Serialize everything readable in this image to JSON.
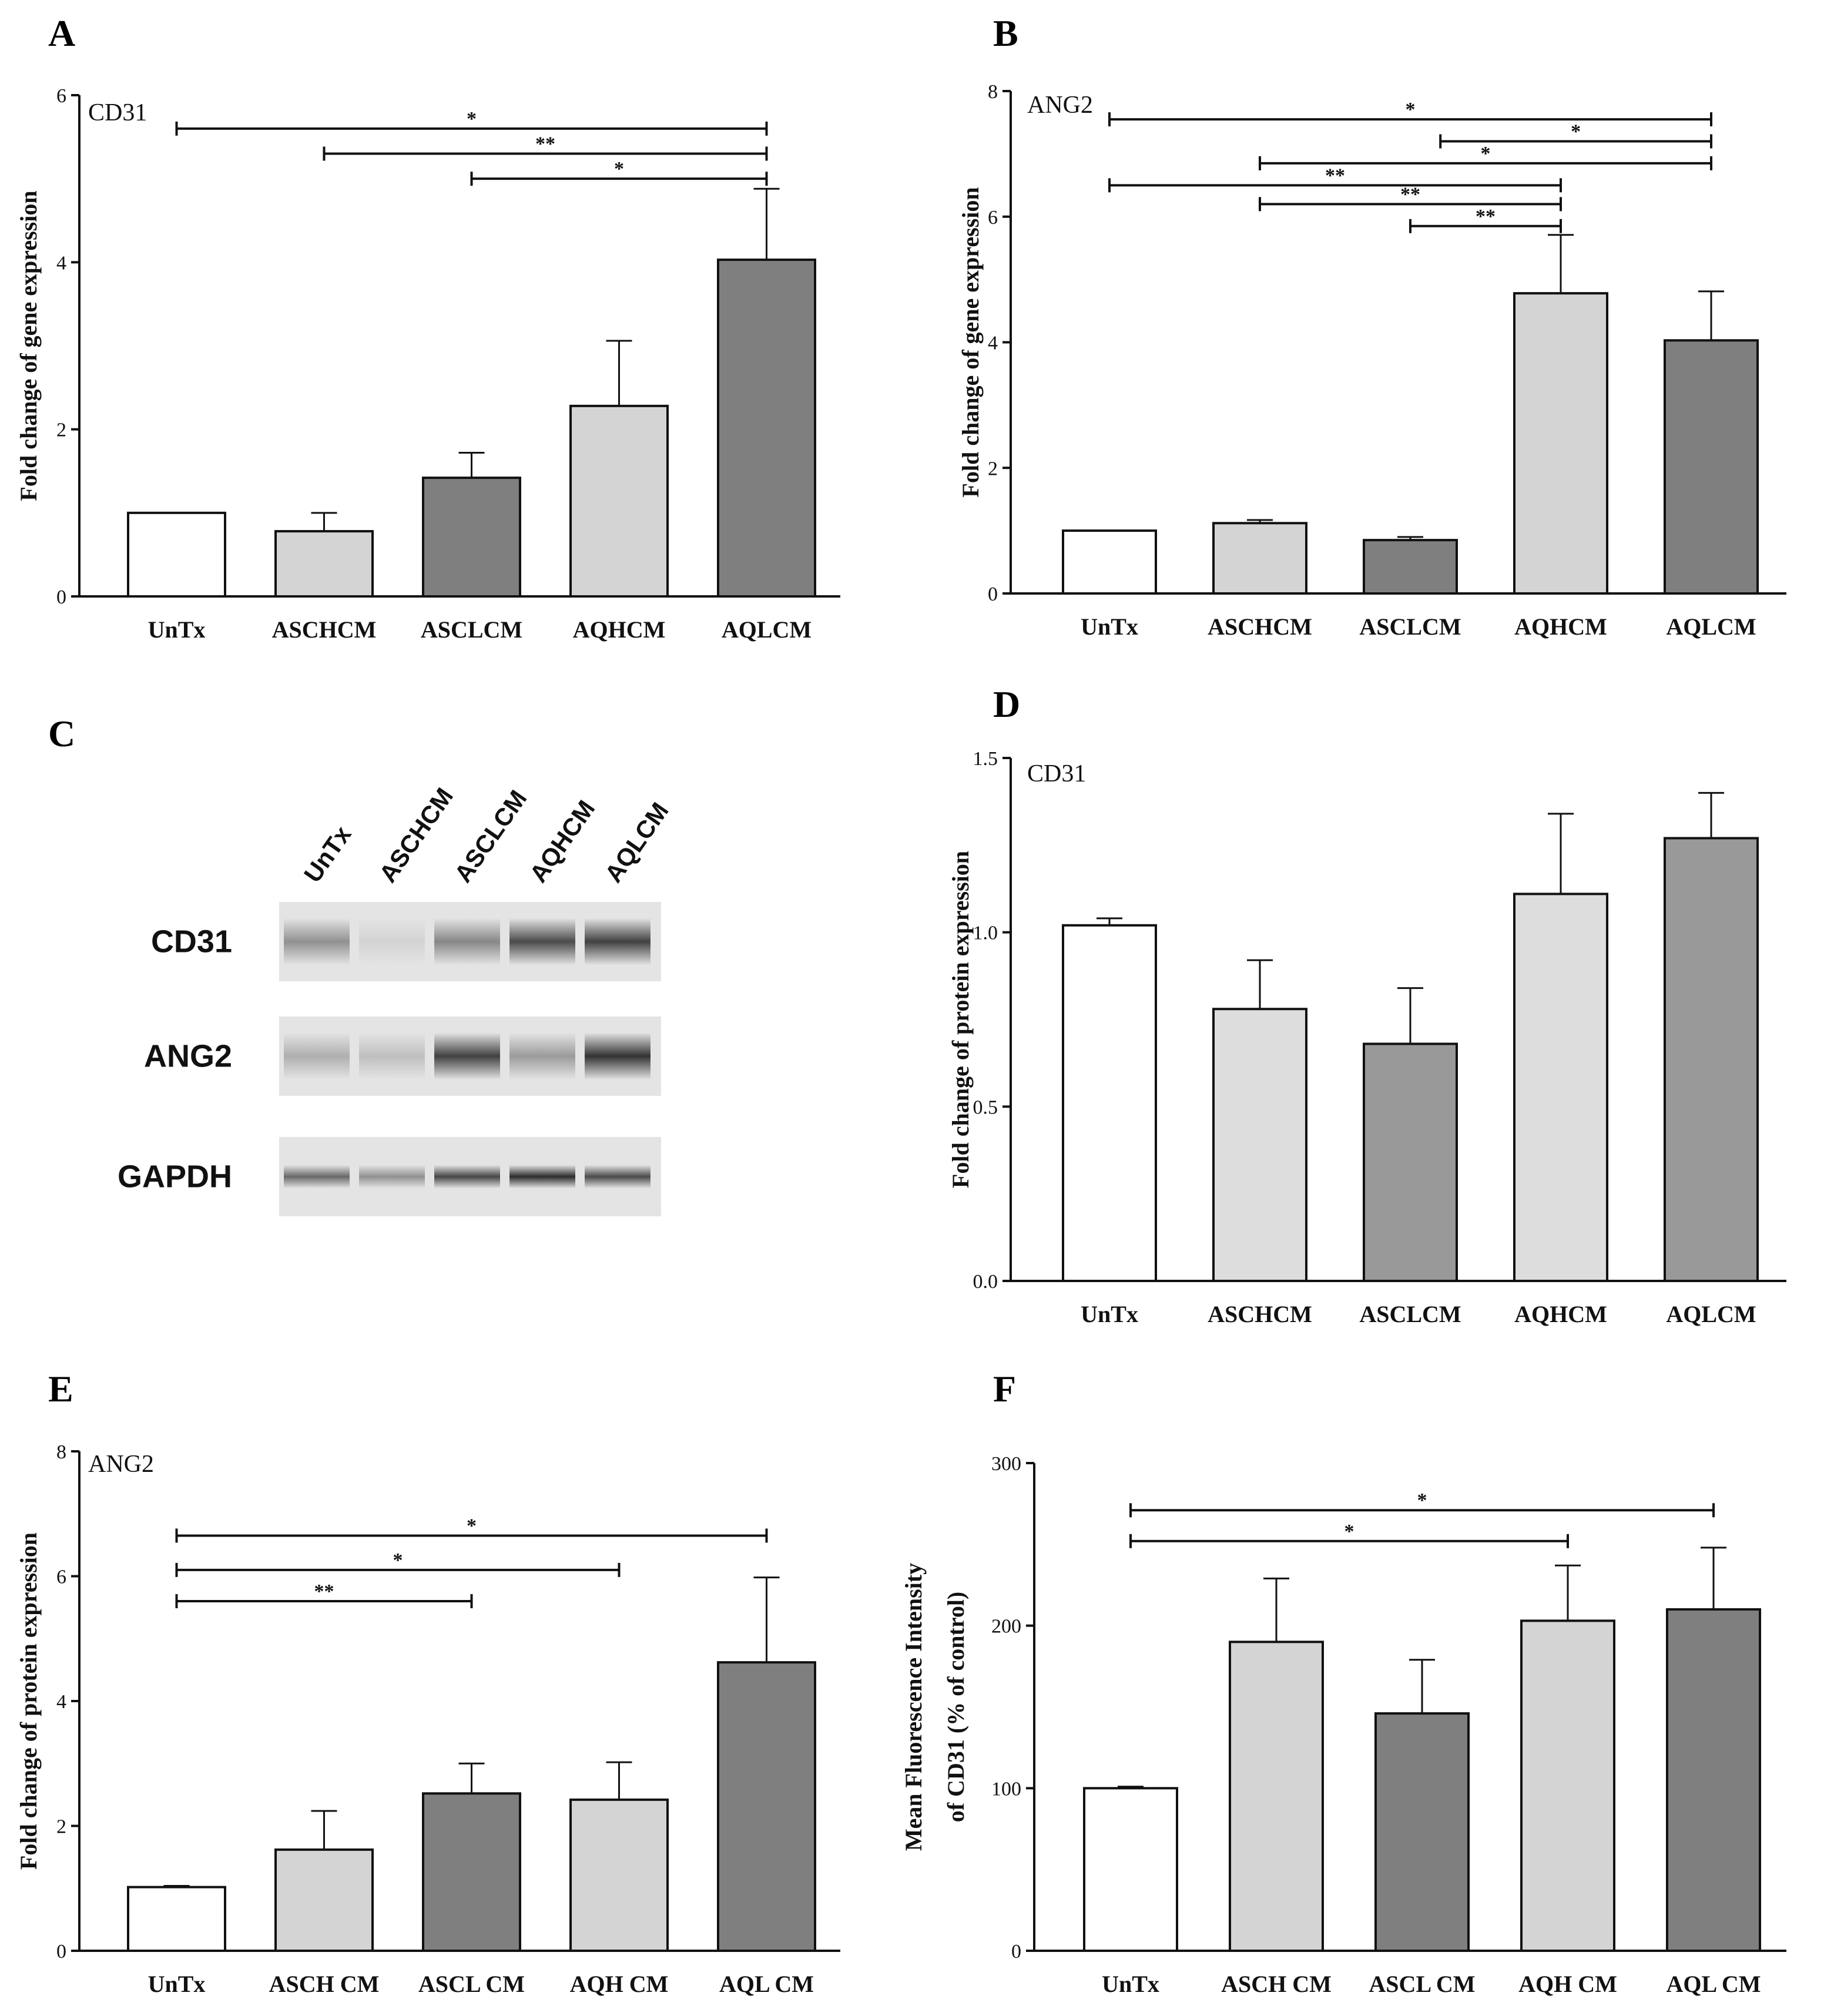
{
  "panels": {
    "A": {
      "label": "A"
    },
    "B": {
      "label": "B"
    },
    "C": {
      "label": "C"
    },
    "D": {
      "label": "D"
    },
    "E": {
      "label": "E"
    },
    "F": {
      "label": "F"
    }
  },
  "colors": {
    "white": "#ffffff",
    "light": "#d4d4d4",
    "dark": "#7f7f7f",
    "mid": "#999999",
    "lighter": "#dddddd",
    "axis": "#111111"
  },
  "blot": {
    "lanes": [
      "UnTx",
      "ASCHCM",
      "ASCLCM",
      "AQHCM",
      "AQLCM"
    ],
    "rows": [
      {
        "label": "CD31",
        "intensity": [
          0.45,
          0.12,
          0.5,
          0.8,
          0.85
        ]
      },
      {
        "label": "ANG2",
        "intensity": [
          0.3,
          0.22,
          0.85,
          0.4,
          0.92
        ]
      },
      {
        "label": "GAPDH",
        "intensity": [
          0.65,
          0.45,
          0.82,
          0.95,
          0.8
        ]
      }
    ]
  },
  "chart_data": [
    {
      "panel": "A",
      "type": "bar",
      "title": "CD31",
      "ylabel": "Fold change of gene expression",
      "categories": [
        "UnTx",
        "ASCHCM",
        "ASCLCM",
        "AQHCM",
        "AQLCM"
      ],
      "values": [
        1.0,
        0.78,
        1.42,
        2.28,
        4.03
      ],
      "errors": [
        0.0,
        0.22,
        0.3,
        0.78,
        0.85
      ],
      "fills": [
        "white",
        "light",
        "dark",
        "light",
        "dark"
      ],
      "ylim": [
        0,
        6
      ],
      "yticks": [
        "0",
        "2",
        "4",
        "6"
      ],
      "ytick_values": [
        0,
        2,
        4,
        6
      ],
      "sig": [
        {
          "from": 0,
          "to": 4,
          "y": 5.6,
          "label": "*"
        },
        {
          "from": 1,
          "to": 4,
          "y": 5.3,
          "label": "**"
        },
        {
          "from": 2,
          "to": 4,
          "y": 5.0,
          "label": "*"
        }
      ]
    },
    {
      "panel": "B",
      "type": "bar",
      "title": "ANG2",
      "ylabel": "Fold change of gene expression",
      "categories": [
        "UnTx",
        "ASCHCM",
        "ASCLCM",
        "AQHCM",
        "AQLCM"
      ],
      "values": [
        1.0,
        1.12,
        0.85,
        4.78,
        4.03
      ],
      "errors": [
        0.0,
        0.05,
        0.05,
        0.93,
        0.78
      ],
      "fills": [
        "white",
        "light",
        "dark",
        "light",
        "dark"
      ],
      "ylim": [
        0,
        8
      ],
      "yticks": [
        "0",
        "2",
        "4",
        "6",
        "8"
      ],
      "ytick_values": [
        0,
        2,
        4,
        6,
        8
      ],
      "sig": [
        {
          "from": 0,
          "to": 4,
          "y": 7.55,
          "label": "*"
        },
        {
          "from": 2.2,
          "to": 4,
          "y": 7.2,
          "label": "*"
        },
        {
          "from": 1,
          "to": 4,
          "y": 6.85,
          "label": "*"
        },
        {
          "from": 0,
          "to": 3,
          "y": 6.5,
          "label": "**"
        },
        {
          "from": 1,
          "to": 3,
          "y": 6.2,
          "label": "**"
        },
        {
          "from": 2,
          "to": 3,
          "y": 5.85,
          "label": "**"
        }
      ]
    },
    {
      "panel": "D",
      "type": "bar",
      "title": "CD31",
      "ylabel": "Fold change of protein expression",
      "categories": [
        "UnTx",
        "ASCHCM",
        "ASCLCM",
        "AQHCM",
        "AQLCM"
      ],
      "values": [
        1.02,
        0.78,
        0.68,
        1.11,
        1.27
      ],
      "errors": [
        0.02,
        0.14,
        0.16,
        0.23,
        0.13
      ],
      "fills": [
        "white",
        "lighter",
        "mid",
        "lighter",
        "mid"
      ],
      "ylim": [
        0,
        1.5
      ],
      "yticks": [
        "0.0",
        "0.5",
        "1.0",
        "1.5"
      ],
      "ytick_values": [
        0,
        0.5,
        1.0,
        1.5
      ],
      "sig": []
    },
    {
      "panel": "E",
      "type": "bar",
      "title": "ANG2",
      "ylabel": "Fold change of protein expression",
      "categories": [
        "UnTx",
        "ASCH CM",
        "ASCL CM",
        "AQH CM",
        "AQL CM"
      ],
      "values": [
        1.02,
        1.62,
        2.52,
        2.42,
        4.62
      ],
      "errors": [
        0.02,
        0.62,
        0.48,
        0.6,
        1.36
      ],
      "fills": [
        "white",
        "light",
        "dark",
        "light",
        "dark"
      ],
      "ylim": [
        0,
        8
      ],
      "yticks": [
        "0",
        "2",
        "4",
        "6",
        "8"
      ],
      "ytick_values": [
        0,
        2,
        4,
        6,
        8
      ],
      "sig": [
        {
          "from": 0,
          "to": 4,
          "y": 6.65,
          "label": "*"
        },
        {
          "from": 0,
          "to": 3,
          "y": 6.1,
          "label": "*"
        },
        {
          "from": 0,
          "to": 2,
          "y": 5.6,
          "label": "**"
        }
      ]
    },
    {
      "panel": "F",
      "type": "bar",
      "title": "",
      "ylabel": "Mean Fluorescence Intensity of CD31 (% of control)",
      "ylabel_lines": [
        "Mean Fluorescence Intensity",
        "of CD31 (% of control)"
      ],
      "categories": [
        "UnTx",
        "ASCH CM",
        "ASCL CM",
        "AQH CM",
        "AQL CM"
      ],
      "values": [
        100,
        190,
        146,
        203,
        210
      ],
      "errors": [
        1,
        39,
        33,
        34,
        38
      ],
      "fills": [
        "white",
        "light",
        "dark",
        "light",
        "dark"
      ],
      "ylim": [
        0,
        300
      ],
      "yticks": [
        "0",
        "100",
        "200",
        "300"
      ],
      "ytick_values": [
        0,
        100,
        200,
        300
      ],
      "sig": [
        {
          "from": 0,
          "to": 4,
          "y": 271,
          "label": "*"
        },
        {
          "from": 0,
          "to": 3,
          "y": 252,
          "label": "*"
        }
      ]
    }
  ]
}
